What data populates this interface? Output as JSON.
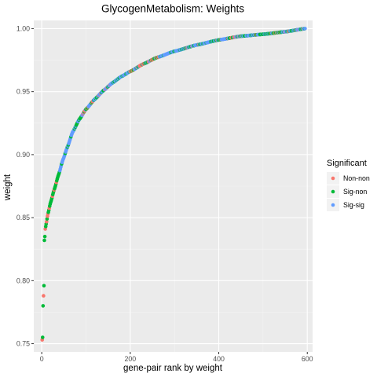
{
  "chart_data": {
    "type": "scatter",
    "title": "GlycogenMetabolism: Weights",
    "xlabel": "gene-pair rank by weight",
    "ylabel": "weight",
    "xlim": [
      -18,
      612
    ],
    "ylim": [
      0.7435,
      1.0065
    ],
    "x_ticks": [
      0,
      200,
      400,
      600
    ],
    "x_tick_labels": [
      "0",
      "200",
      "400",
      "600"
    ],
    "y_ticks": [
      0.75,
      0.8,
      0.85,
      0.9,
      0.95,
      1.0
    ],
    "y_tick_labels": [
      "0.75",
      "0.80",
      "0.85",
      "0.90",
      "0.95",
      "1.00"
    ],
    "grid": true,
    "n_points": 595,
    "legend": {
      "title": "Significant",
      "position": "right",
      "entries": [
        {
          "label": "Non-non",
          "color": "#F8766D"
        },
        {
          "label": "Sig-non",
          "color": "#00BA38"
        },
        {
          "label": "Sig-sig",
          "color": "#619CFF"
        }
      ]
    },
    "curve_knots": [
      [
        1,
        0.753
      ],
      [
        2,
        0.755
      ],
      [
        3,
        0.78
      ],
      [
        4,
        0.788
      ],
      [
        5,
        0.796
      ],
      [
        6,
        0.832
      ],
      [
        7,
        0.835
      ],
      [
        8,
        0.841
      ],
      [
        10,
        0.845
      ],
      [
        14,
        0.853
      ],
      [
        20,
        0.862
      ],
      [
        28,
        0.872
      ],
      [
        38,
        0.884
      ],
      [
        48,
        0.896
      ],
      [
        58,
        0.906
      ],
      [
        70,
        0.918
      ],
      [
        85,
        0.928
      ],
      [
        100,
        0.936
      ],
      [
        120,
        0.944
      ],
      [
        140,
        0.951
      ],
      [
        160,
        0.957
      ],
      [
        180,
        0.962
      ],
      [
        200,
        0.966
      ],
      [
        230,
        0.972
      ],
      [
        260,
        0.977
      ],
      [
        300,
        0.982
      ],
      [
        350,
        0.987
      ],
      [
        400,
        0.991
      ],
      [
        450,
        0.994
      ],
      [
        500,
        0.9955
      ],
      [
        550,
        0.9975
      ],
      [
        595,
        1.0
      ]
    ],
    "early_points": [
      {
        "x": 1,
        "y": 0.753,
        "group": "Non-non"
      },
      {
        "x": 2,
        "y": 0.755,
        "group": "Sig-non"
      },
      {
        "x": 3,
        "y": 0.78,
        "group": "Sig-non"
      },
      {
        "x": 4,
        "y": 0.788,
        "group": "Non-non"
      },
      {
        "x": 5,
        "y": 0.796,
        "group": "Sig-non"
      },
      {
        "x": 6,
        "y": 0.832,
        "group": "Sig-non"
      },
      {
        "x": 7,
        "y": 0.835,
        "group": "Sig-non"
      },
      {
        "x": 8,
        "y": 0.841,
        "group": "Non-non"
      },
      {
        "x": 9,
        "y": 0.843,
        "group": "Sig-non"
      },
      {
        "x": 10,
        "y": 0.845,
        "group": "Sig-non"
      }
    ],
    "group_segments": [
      {
        "from": 11,
        "to": 40,
        "weights": [
          0.35,
          0.65,
          0.0
        ]
      },
      {
        "from": 41,
        "to": 75,
        "weights": [
          0.05,
          0.2,
          0.75
        ]
      },
      {
        "from": 76,
        "to": 110,
        "weights": [
          0.2,
          0.45,
          0.35
        ]
      },
      {
        "from": 111,
        "to": 200,
        "weights": [
          0.1,
          0.3,
          0.6
        ]
      },
      {
        "from": 201,
        "to": 270,
        "weights": [
          0.3,
          0.45,
          0.25
        ]
      },
      {
        "from": 271,
        "to": 420,
        "weights": [
          0.05,
          0.3,
          0.65
        ]
      },
      {
        "from": 421,
        "to": 595,
        "weights": [
          0.15,
          0.45,
          0.4
        ]
      }
    ]
  }
}
